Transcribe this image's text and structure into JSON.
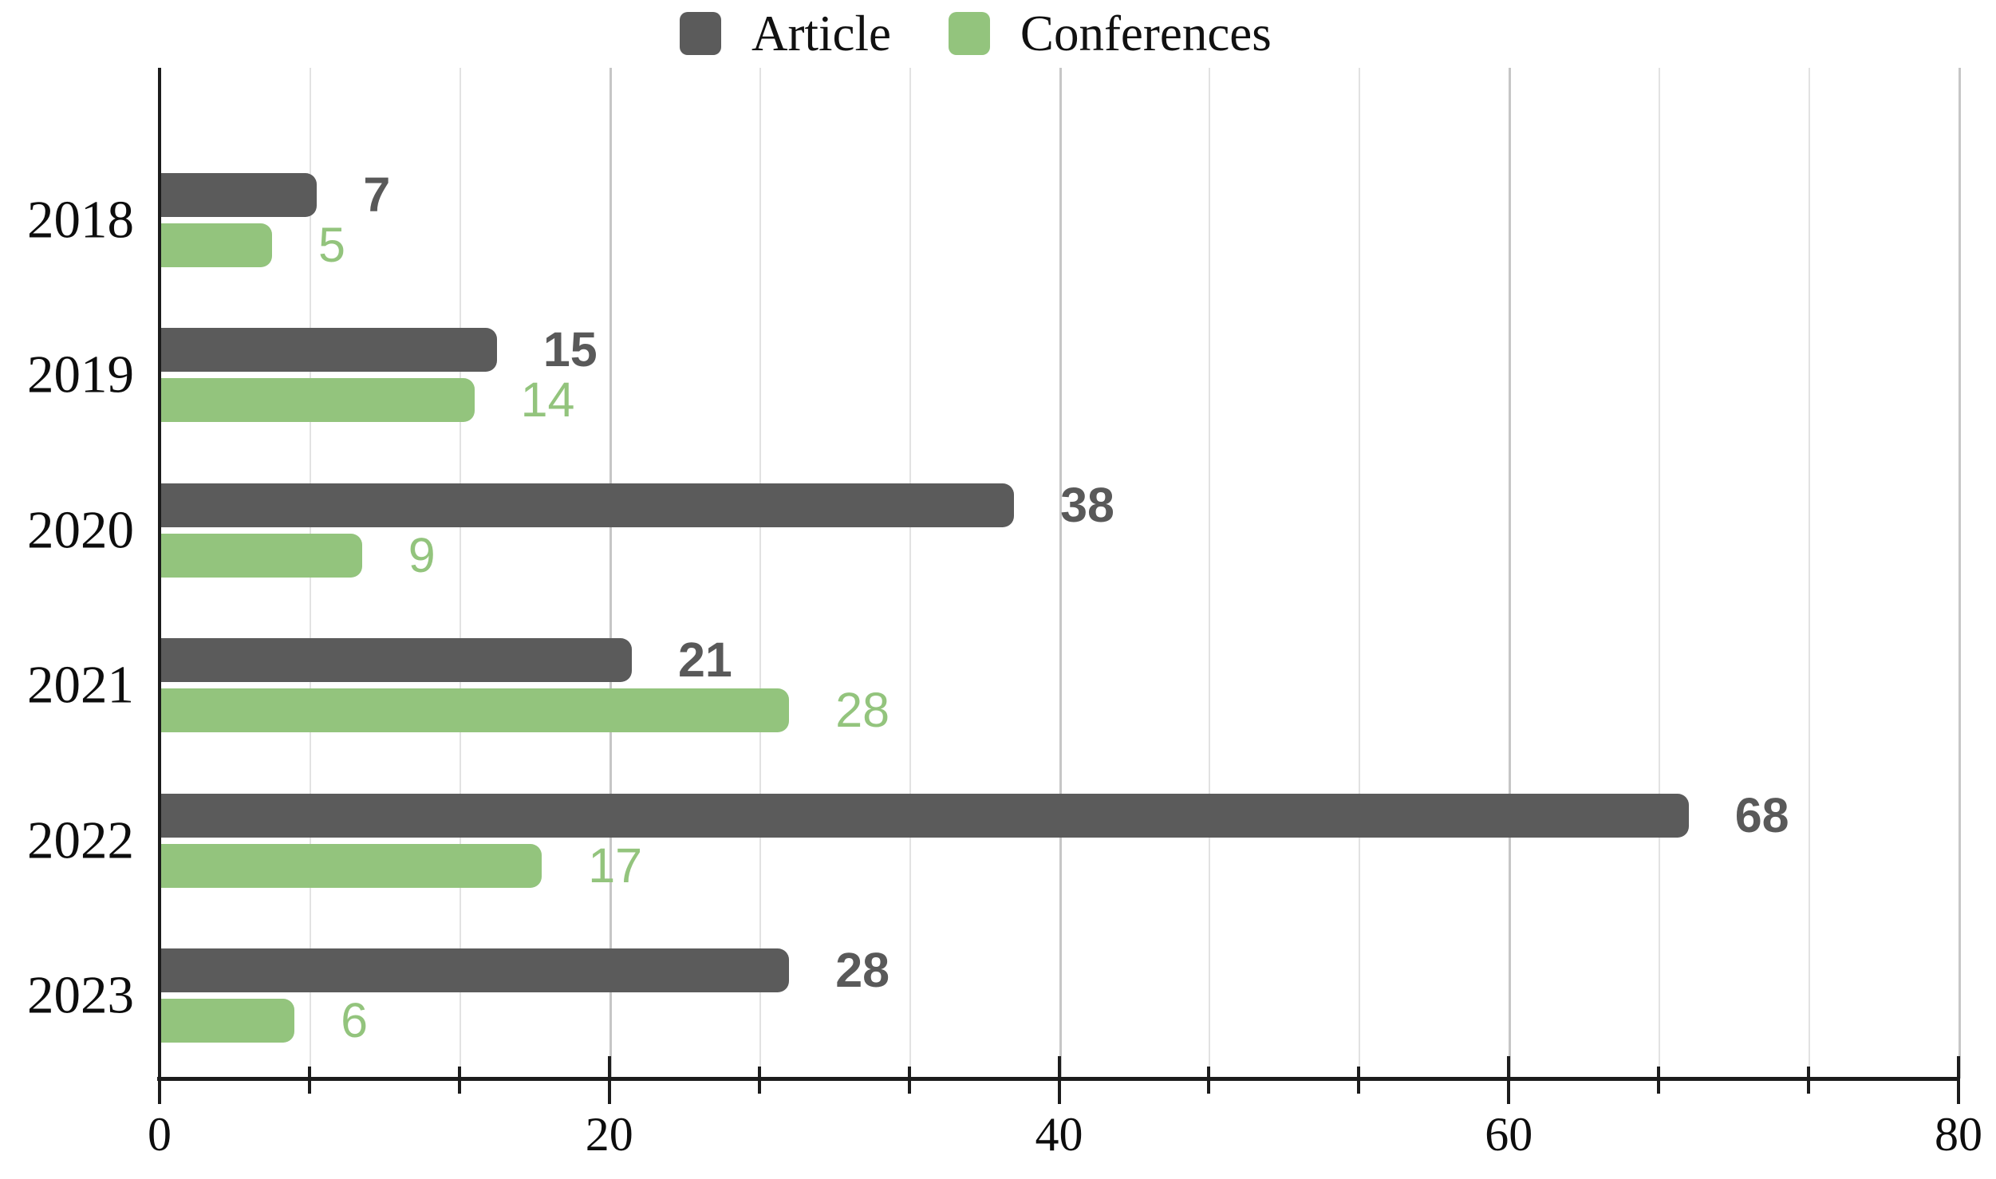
{
  "chart_data": {
    "type": "bar",
    "orientation": "horizontal",
    "title": "",
    "categories": [
      "2018",
      "2019",
      "2020",
      "2021",
      "2022",
      "2023"
    ],
    "series": [
      {
        "name": "Article",
        "color": "#5b5b5b",
        "values": [
          7,
          15,
          38,
          21,
          68,
          28
        ]
      },
      {
        "name": "Conferences",
        "color": "#93c47d",
        "values": [
          5,
          14,
          9,
          28,
          17,
          6
        ]
      }
    ],
    "xlim": [
      0,
      80
    ],
    "x_tick_labels": [
      "0",
      "20",
      "40",
      "60",
      "80"
    ],
    "x_tick_values": [
      0,
      20,
      40,
      60,
      80
    ],
    "grid": true,
    "grid_divisions": 12,
    "legend_position": "top-center",
    "data_labels_shown": true
  },
  "colors": {
    "article_bar": "#5b5b5b",
    "article_label": "#595959",
    "conferences_bar": "#93c47d",
    "conferences_label": "#93c47d",
    "axis": "#1c1c1c",
    "grid_minor": "#e2e2e2",
    "grid_major": "#c6c6c6",
    "text": "#0d0d0d",
    "background": "#ffffff"
  }
}
